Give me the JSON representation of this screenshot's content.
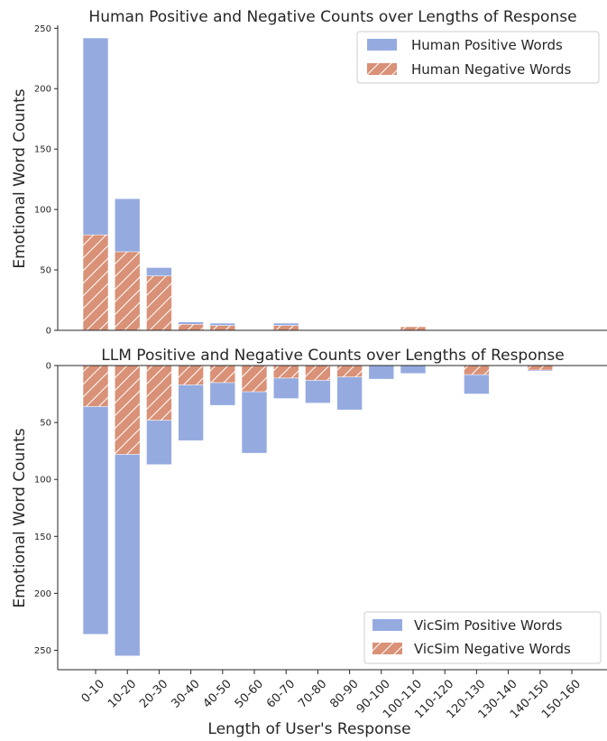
{
  "colors": {
    "positive": "#95abe0",
    "negative": "#d99177",
    "hatch": "#ffffff"
  },
  "chart_data": [
    {
      "type": "bar",
      "stacked": false,
      "overlay": true,
      "title": "Human Positive and Negative Counts over Lengths of Response",
      "ylabel": "Emotional Word Counts",
      "xlabel": "",
      "ylim": [
        0,
        255
      ],
      "yticks": [
        0,
        50,
        100,
        150,
        200,
        250
      ],
      "inverted_y": false,
      "legend_position": "top-right",
      "categories": [
        "0-10",
        "10-20",
        "20-30",
        "30-40",
        "40-50",
        "50-60",
        "60-70",
        "70-80",
        "80-90",
        "90-100",
        "100-110",
        "110-120",
        "120-130",
        "130-140",
        "140-150",
        "150-160"
      ],
      "series": [
        {
          "name": "Human Positive Words",
          "values": [
            242,
            109,
            52,
            7,
            6,
            0,
            6,
            0,
            0,
            0,
            3,
            0,
            0,
            0,
            0,
            0
          ]
        },
        {
          "name": "Human Negative Words",
          "values": [
            79,
            65,
            45,
            5,
            4,
            0,
            4,
            0,
            0,
            0,
            3,
            0,
            0,
            0,
            0,
            0
          ]
        }
      ]
    },
    {
      "type": "bar",
      "stacked": false,
      "overlay": true,
      "title": "LLM Positive and Negative Counts over Lengths of Response",
      "ylabel": "Emotional Word Counts",
      "xlabel": "Length of User's Response",
      "ylim": [
        0,
        267
      ],
      "yticks": [
        0,
        50,
        100,
        150,
        200,
        250
      ],
      "inverted_y": true,
      "legend_position": "bottom-right",
      "categories": [
        "0-10",
        "10-20",
        "20-30",
        "30-40",
        "40-50",
        "50-60",
        "60-70",
        "70-80",
        "80-90",
        "90-100",
        "100-110",
        "110-120",
        "120-130",
        "130-140",
        "140-150",
        "150-160"
      ],
      "series": [
        {
          "name": "VicSim Positive Words",
          "values": [
            236,
            255,
            87,
            66,
            35,
            77,
            29,
            33,
            39,
            12,
            7,
            0,
            25,
            0,
            5,
            0
          ]
        },
        {
          "name": "VicSim Negative Words",
          "values": [
            36,
            78,
            48,
            17,
            15,
            23,
            11,
            13,
            10,
            0,
            0,
            0,
            8,
            0,
            4,
            0
          ]
        }
      ]
    }
  ]
}
